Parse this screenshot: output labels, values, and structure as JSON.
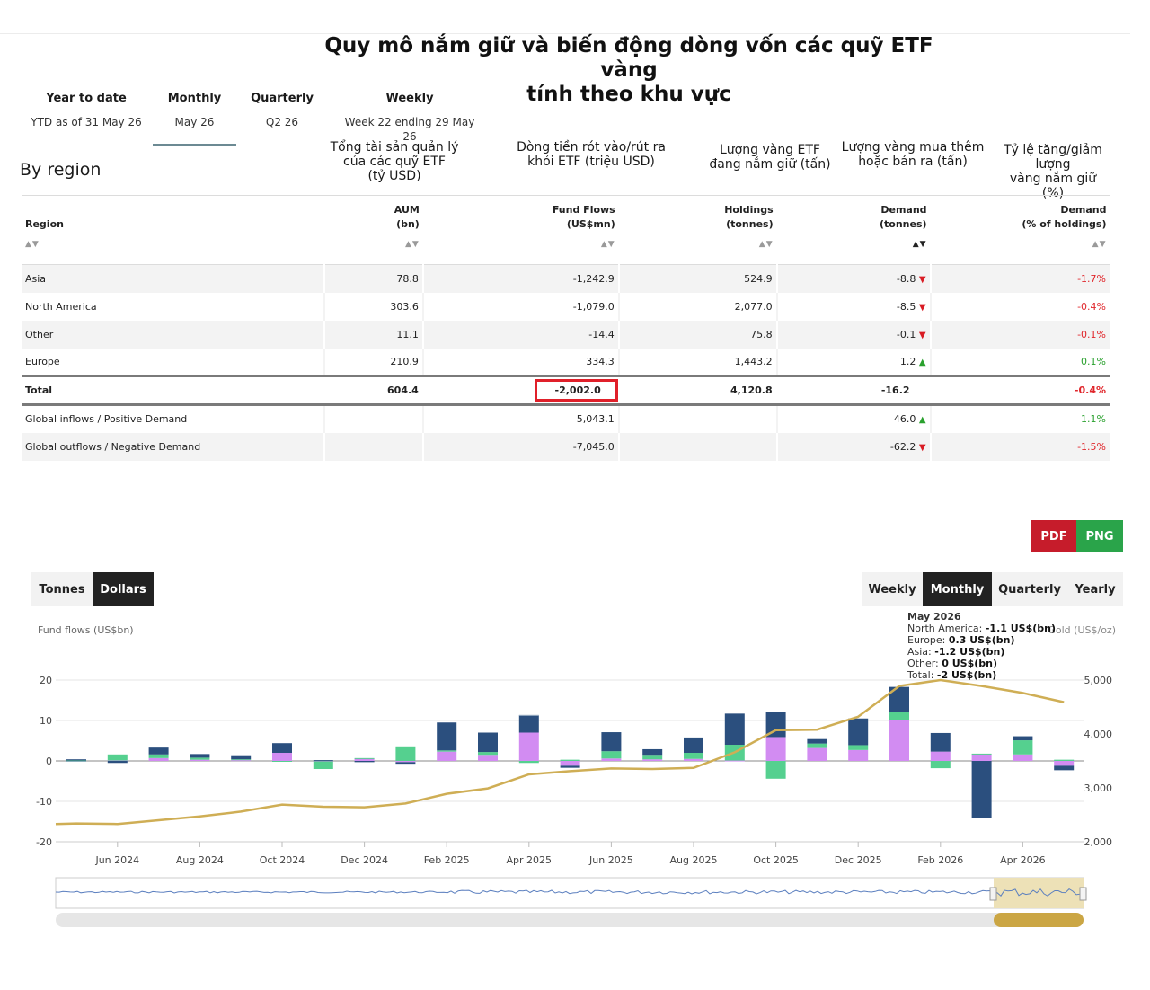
{
  "title_line1": "Quy mô nắm giữ và biến động dòng vốn các quỹ ETF vàng",
  "title_line2": "tính theo khu vực",
  "tabs": [
    {
      "label": "Year to date",
      "sub": "YTD as of 31 May 26"
    },
    {
      "label": "Monthly",
      "sub": "May 26"
    },
    {
      "label": "Quarterly",
      "sub": "Q2 26"
    },
    {
      "label": "Weekly",
      "sub": "Week 22 ending 29 May 26"
    }
  ],
  "section_title": "By region",
  "vi_headers": {
    "aum": [
      "Tổng tài sản quản lý",
      "của các quỹ ETF",
      "(tỷ USD)"
    ],
    "flows": [
      "Dòng tiền rót vào/rút ra",
      "khỏi ETF (triệu USD)"
    ],
    "holdings": [
      "Lượng vàng ETF",
      "đang nắm giữ (tấn)"
    ],
    "demand": [
      "Lượng vàng mua thêm",
      "hoặc bán ra (tấn)"
    ],
    "pct": [
      "Tỷ lệ tăng/giảm lượng",
      "vàng nắm giữ",
      "(%)"
    ]
  },
  "columns": {
    "region": {
      "l1": "",
      "l2": "Region"
    },
    "aum": {
      "l1": "AUM",
      "l2": "(bn)"
    },
    "flows": {
      "l1": "Fund Flows",
      "l2": "(US$mn)"
    },
    "holdings": {
      "l1": "Holdings",
      "l2": "(tonnes)"
    },
    "demand": {
      "l1": "Demand",
      "l2": "(tonnes)"
    },
    "pct": {
      "l1": "Demand",
      "l2": "(% of holdings)"
    }
  },
  "sort_glyph": "▲▼",
  "rows": [
    {
      "region": "Asia",
      "aum": "78.8",
      "flows": "-1,242.9",
      "holdings": "524.9",
      "demand": "-8.8",
      "dir": "▼",
      "pct": "-1.7%"
    },
    {
      "region": "North America",
      "aum": "303.6",
      "flows": "-1,079.0",
      "holdings": "2,077.0",
      "demand": "-8.5",
      "dir": "▼",
      "pct": "-0.4%"
    },
    {
      "region": "Other",
      "aum": "11.1",
      "flows": "-14.4",
      "holdings": "75.8",
      "demand": "-0.1",
      "dir": "▼",
      "pct": "-0.1%"
    },
    {
      "region": "Europe",
      "aum": "210.9",
      "flows": "334.3",
      "holdings": "1,443.2",
      "demand": "1.2",
      "dir": "▲",
      "pct": "0.1%"
    }
  ],
  "total": {
    "region": "Total",
    "aum": "604.4",
    "flows": "-2,002.0",
    "holdings": "4,120.8",
    "demand": "-16.2",
    "pct": "-0.4%"
  },
  "global": [
    {
      "label": "Global inflows / Positive Demand",
      "flows": "5,043.1",
      "demand": "46.0",
      "dir": "▲",
      "pct": "1.1%"
    },
    {
      "label": "Global outflows / Negative Demand",
      "flows": "-7,045.0",
      "demand": "-62.2",
      "dir": "▼",
      "pct": "-1.5%"
    }
  ],
  "export": {
    "pdf": "PDF",
    "png": "PNG"
  },
  "unit_toggle": [
    "Tonnes",
    "Dollars"
  ],
  "period_toggle": [
    "Weekly",
    "Monthly",
    "Quarterly",
    "Yearly"
  ],
  "tooltip": {
    "title": "May 2026",
    "lines": [
      {
        "k": "North America: ",
        "v": "-1.1 US$(bn)"
      },
      {
        "k": "Europe: ",
        "v": "0.3 US$(bn)"
      },
      {
        "k": "Asia: ",
        "v": "-1.2 US$(bn)"
      },
      {
        "k": "Other: ",
        "v": "0 US$(bn)"
      },
      {
        "k": "Total: ",
        "v": "-2 US$(bn)"
      }
    ]
  },
  "colors": {
    "north_america": "#2b4f7e",
    "europe": "#55d08f",
    "asia": "#d28cf2",
    "other": "#b9c9d6",
    "gold_line": "#cfae55"
  },
  "chart_data": {
    "type": "bar",
    "left_axis_title": "Fund flows (US$bn)",
    "right_axis_title": "Gold (US$/oz)",
    "ylim": [
      -20,
      20
    ],
    "yticks": [
      "20",
      "10",
      "0",
      "-10",
      "-20"
    ],
    "y2lim": [
      2000,
      5000
    ],
    "y2ticks": [
      "5,000",
      "4,000",
      "3,000",
      "2,000"
    ],
    "xtick_labels": [
      "Jun 2024",
      "Aug 2024",
      "Oct 2024",
      "Dec 2024",
      "Feb 2025",
      "Apr 2025",
      "Jun 2025",
      "Aug 2025",
      "Oct 2025",
      "Dec 2025",
      "Feb 2026",
      "Apr 2026"
    ],
    "months": [
      "May 2024",
      "Jun 2024",
      "Jul 2024",
      "Aug 2024",
      "Sep 2024",
      "Oct 2024",
      "Nov 2024",
      "Dec 2024",
      "Jan 2025",
      "Feb 2025",
      "Mar 2025",
      "Apr 2025",
      "May 2025",
      "Jun 2025",
      "Jul 2025",
      "Aug 2025",
      "Sep 2025",
      "Oct 2025",
      "Nov 2025",
      "Dec 2025",
      "Jan 2026",
      "Feb 2026",
      "Mar 2026",
      "Apr 2026",
      "May 2026"
    ],
    "series": [
      {
        "key": "north_america",
        "values": [
          0.3,
          -0.5,
          1.7,
          0.9,
          1.0,
          2.4,
          0.2,
          -0.3,
          -0.4,
          6.9,
          4.8,
          4.3,
          -0.5,
          4.7,
          1.4,
          3.8,
          7.7,
          6.3,
          1.1,
          6.6,
          6.1,
          4.6,
          -14.0,
          1.0,
          -1.1
        ]
      },
      {
        "key": "europe",
        "values": [
          0.1,
          1.5,
          0.9,
          0.5,
          0.2,
          -0.2,
          -1.9,
          0.1,
          3.6,
          0.3,
          0.7,
          -0.5,
          0.3,
          1.8,
          1.1,
          1.5,
          3.9,
          -4.4,
          1.1,
          1.2,
          2.2,
          -1.8,
          0.1,
          3.5,
          0.3
        ]
      },
      {
        "key": "asia",
        "values": [
          -0.2,
          0.1,
          0.7,
          0.3,
          0.2,
          2.0,
          -0.1,
          0.6,
          -0.3,
          2.3,
          1.5,
          7.0,
          -1.2,
          0.6,
          0.4,
          0.5,
          0.1,
          5.9,
          3.2,
          2.7,
          10.0,
          2.3,
          1.7,
          1.6,
          -1.2
        ]
      },
      {
        "key": "other",
        "values": [
          0.0,
          0.0,
          0.0,
          0.0,
          0.0,
          0.0,
          0.0,
          0.0,
          0.0,
          0.0,
          0.0,
          0.1,
          0.0,
          0.0,
          0.0,
          0.0,
          0.0,
          0.0,
          0.0,
          0.0,
          0.0,
          0.0,
          0.0,
          0.0,
          0.0
        ]
      }
    ],
    "gold_price": [
      2340,
      2330,
      2400,
      2470,
      2560,
      2690,
      2650,
      2640,
      2710,
      2890,
      2990,
      3250,
      3310,
      3360,
      3350,
      3370,
      3660,
      4070,
      4080,
      4320,
      4890,
      5000,
      4890,
      4760,
      4590
    ]
  }
}
